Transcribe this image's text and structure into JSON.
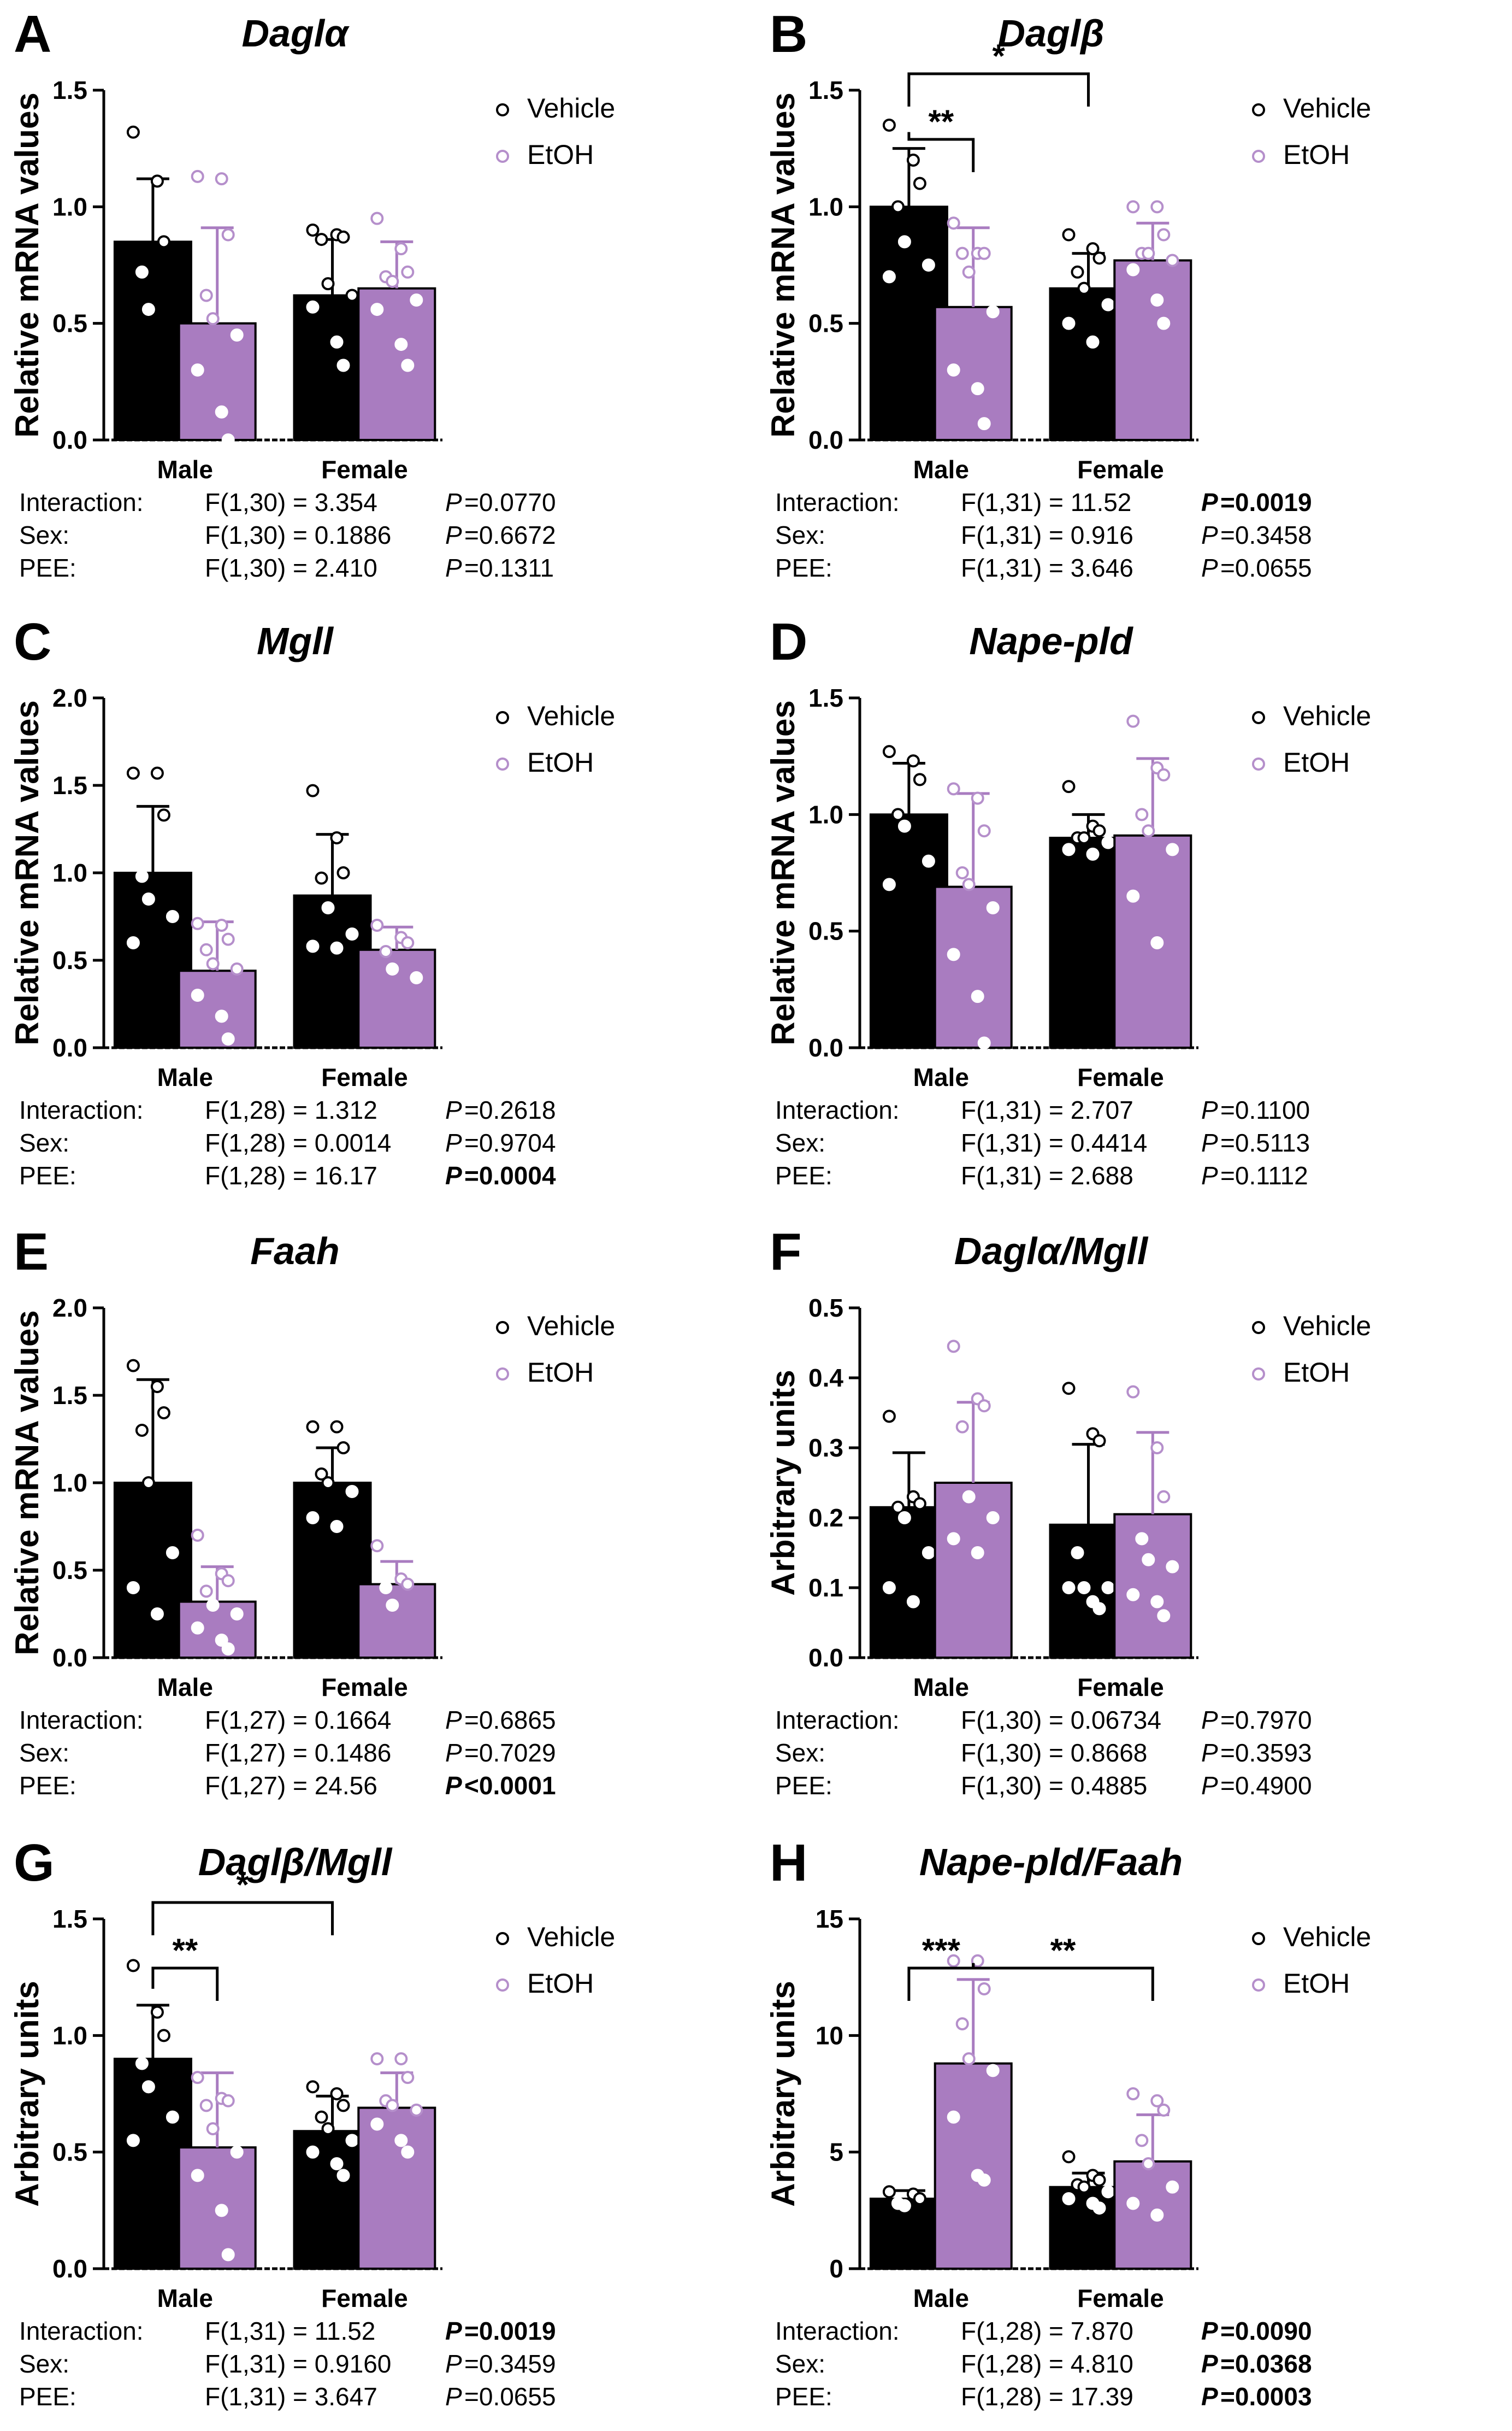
{
  "legend_labels": [
    "Vehicle",
    "EtOH"
  ],
  "colors": {
    "vehicle": "#000000",
    "etoh": "#a97cc0",
    "etoh_dot": "#b58fcb",
    "axis": "#000000"
  },
  "chart_data": [
    {
      "type": "bar",
      "letter": "A",
      "title": "Daglα",
      "ylabel": "Relative mRNA values",
      "ylim": [
        0,
        1.5
      ],
      "yticks": [
        "0.0",
        "0.5",
        "1.0",
        "1.5"
      ],
      "categories": [
        "Male",
        "Female"
      ],
      "series": [
        {
          "name": "Vehicle",
          "values": [
            0.85,
            0.62
          ],
          "sd": [
            0.27,
            0.24
          ],
          "points": [
            [
              1.32,
              1.11,
              0.85,
              0.72,
              0.56
            ],
            [
              0.9,
              0.88,
              0.87,
              0.86,
              0.67,
              0.62,
              0.57,
              0.42,
              0.32
            ]
          ]
        },
        {
          "name": "EtOH",
          "values": [
            0.5,
            0.65
          ],
          "sd": [
            0.41,
            0.2
          ],
          "points": [
            [
              1.13,
              1.12,
              0.88,
              0.62,
              0.52,
              0.45,
              0.3,
              0.12,
              0.0
            ],
            [
              0.95,
              0.82,
              0.72,
              0.7,
              0.68,
              0.6,
              0.56,
              0.41,
              0.32
            ]
          ]
        }
      ],
      "significance": [],
      "stats": [
        {
          "term": "Interaction:",
          "f": "F(1,30) = 3.354",
          "p_label": "P",
          "p_value": "=0.0770",
          "bold": false
        },
        {
          "term": "Sex:",
          "f": "F(1,30) = 0.1886",
          "p_label": "P",
          "p_value": "=0.6672",
          "bold": false
        },
        {
          "term": "PEE:",
          "f": "F(1,30) = 2.410",
          "p_label": "P",
          "p_value": "=0.1311",
          "bold": false
        }
      ]
    },
    {
      "type": "bar",
      "letter": "B",
      "title": "Daglβ",
      "ylabel": "Relative mRNA values",
      "ylim": [
        0,
        1.5
      ],
      "yticks": [
        "0.0",
        "0.5",
        "1.0",
        "1.5"
      ],
      "categories": [
        "Male",
        "Female"
      ],
      "series": [
        {
          "name": "Vehicle",
          "values": [
            1.0,
            0.65
          ],
          "sd": [
            0.25,
            0.15
          ],
          "points": [
            [
              1.35,
              1.2,
              1.1,
              1.0,
              0.85,
              0.75,
              0.7
            ],
            [
              0.88,
              0.82,
              0.78,
              0.72,
              0.65,
              0.58,
              0.5,
              0.42
            ]
          ]
        },
        {
          "name": "EtOH",
          "values": [
            0.57,
            0.77
          ],
          "sd": [
            0.34,
            0.16
          ],
          "points": [
            [
              0.93,
              0.8,
              0.8,
              0.8,
              0.72,
              0.55,
              0.3,
              0.22,
              0.07
            ],
            [
              1.0,
              1.0,
              0.88,
              0.8,
              0.8,
              0.77,
              0.73,
              0.6,
              0.5
            ]
          ]
        }
      ],
      "significance": [
        {
          "label": "**",
          "from": [
            0,
            0
          ],
          "to": [
            0,
            1
          ],
          "level": 1
        },
        {
          "label": "*",
          "from": [
            0,
            0
          ],
          "to": [
            1,
            0
          ],
          "level": 2
        }
      ],
      "stats": [
        {
          "term": "Interaction:",
          "f": "F(1,31) = 11.52",
          "p_label": "P",
          "p_value": "=0.0019",
          "bold": true
        },
        {
          "term": "Sex:",
          "f": "F(1,31) = 0.916",
          "p_label": "P",
          "p_value": "=0.3458",
          "bold": false
        },
        {
          "term": "PEE:",
          "f": "F(1,31) = 3.646",
          "p_label": "P",
          "p_value": "=0.0655",
          "bold": false
        }
      ]
    },
    {
      "type": "bar",
      "letter": "C",
      "title": "Mgll",
      "ylabel": "Relative mRNA values",
      "ylim": [
        0,
        2.0
      ],
      "yticks": [
        "0.0",
        "0.5",
        "1.0",
        "1.5",
        "2.0"
      ],
      "categories": [
        "Male",
        "Female"
      ],
      "series": [
        {
          "name": "Vehicle",
          "values": [
            1.0,
            0.87
          ],
          "sd": [
            0.38,
            0.35
          ],
          "points": [
            [
              1.57,
              1.57,
              1.33,
              0.98,
              0.85,
              0.75,
              0.6
            ],
            [
              1.47,
              1.2,
              1.0,
              0.97,
              0.8,
              0.65,
              0.58,
              0.57
            ]
          ]
        },
        {
          "name": "EtOH",
          "values": [
            0.44,
            0.56
          ],
          "sd": [
            0.28,
            0.13
          ],
          "points": [
            [
              0.71,
              0.7,
              0.62,
              0.56,
              0.48,
              0.45,
              0.3,
              0.18,
              0.05
            ],
            [
              0.7,
              0.63,
              0.6,
              0.55,
              0.45,
              0.4
            ]
          ]
        }
      ],
      "significance": [],
      "stats": [
        {
          "term": "Interaction:",
          "f": "F(1,28) = 1.312",
          "p_label": "P",
          "p_value": "=0.2618",
          "bold": false
        },
        {
          "term": "Sex:",
          "f": "F(1,28) = 0.0014",
          "p_label": "P",
          "p_value": "=0.9704",
          "bold": false
        },
        {
          "term": "PEE:",
          "f": "F(1,28) = 16.17",
          "p_label": "P",
          "p_value": "=0.0004",
          "bold": true
        }
      ]
    },
    {
      "type": "bar",
      "letter": "D",
      "title": "Nape-pld",
      "ylabel": "Relative mRNA values",
      "ylim": [
        0,
        1.5
      ],
      "yticks": [
        "0.0",
        "0.5",
        "1.0",
        "1.5"
      ],
      "categories": [
        "Male",
        "Female"
      ],
      "series": [
        {
          "name": "Vehicle",
          "values": [
            1.0,
            0.9
          ],
          "sd": [
            0.22,
            0.1
          ],
          "points": [
            [
              1.27,
              1.23,
              1.15,
              1.0,
              0.95,
              0.8,
              0.7
            ],
            [
              1.12,
              0.95,
              0.93,
              0.9,
              0.9,
              0.88,
              0.85,
              0.83
            ]
          ]
        },
        {
          "name": "EtOH",
          "values": [
            0.69,
            0.91
          ],
          "sd": [
            0.4,
            0.33
          ],
          "points": [
            [
              1.11,
              1.07,
              0.93,
              0.75,
              0.7,
              0.6,
              0.4,
              0.22,
              0.02
            ],
            [
              1.4,
              1.2,
              1.17,
              1.0,
              0.93,
              0.85,
              0.65,
              0.45
            ]
          ]
        }
      ],
      "significance": [],
      "stats": [
        {
          "term": "Interaction:",
          "f": "F(1,31) = 2.707",
          "p_label": "P",
          "p_value": "=0.1100",
          "bold": false
        },
        {
          "term": "Sex:",
          "f": "F(1,31) = 0.4414",
          "p_label": "P",
          "p_value": "=0.5113",
          "bold": false
        },
        {
          "term": "PEE:",
          "f": "F(1,31) = 2.688",
          "p_label": "P",
          "p_value": "=0.1112",
          "bold": false
        }
      ]
    },
    {
      "type": "bar",
      "letter": "E",
      "title": "Faah",
      "ylabel": "Relative mRNA values",
      "ylim": [
        0,
        2.0
      ],
      "yticks": [
        "0.0",
        "0.5",
        "1.0",
        "1.5",
        "2.0"
      ],
      "categories": [
        "Male",
        "Female"
      ],
      "series": [
        {
          "name": "Vehicle",
          "values": [
            1.0,
            1.0
          ],
          "sd": [
            0.59,
            0.2
          ],
          "points": [
            [
              1.67,
              1.55,
              1.4,
              1.3,
              1.0,
              0.6,
              0.4,
              0.25
            ],
            [
              1.32,
              1.32,
              1.2,
              1.05,
              1.0,
              0.95,
              0.8,
              0.75
            ]
          ]
        },
        {
          "name": "EtOH",
          "values": [
            0.32,
            0.42
          ],
          "sd": [
            0.2,
            0.13
          ],
          "points": [
            [
              0.7,
              0.48,
              0.44,
              0.38,
              0.3,
              0.25,
              0.17,
              0.1,
              0.05
            ],
            [
              0.64,
              0.45,
              0.42,
              0.4,
              0.3
            ]
          ]
        }
      ],
      "significance": [],
      "stats": [
        {
          "term": "Interaction:",
          "f": "F(1,27) = 0.1664",
          "p_label": "P",
          "p_value": "=0.6865",
          "bold": false
        },
        {
          "term": "Sex:",
          "f": "F(1,27) = 0.1486",
          "p_label": "P",
          "p_value": "=0.7029",
          "bold": false
        },
        {
          "term": "PEE:",
          "f": "F(1,27) = 24.56",
          "p_label": "P",
          "p_value": "<0.0001",
          "bold": true
        }
      ]
    },
    {
      "type": "bar",
      "letter": "F",
      "title": "Daglα/Mgll",
      "ylabel": "Arbitrary units",
      "ylim": [
        0,
        0.5
      ],
      "yticks": [
        "0.0",
        "0.1",
        "0.2",
        "0.3",
        "0.4",
        "0.5"
      ],
      "categories": [
        "Male",
        "Female"
      ],
      "series": [
        {
          "name": "Vehicle",
          "values": [
            0.215,
            0.19
          ],
          "sd": [
            0.078,
            0.115
          ],
          "points": [
            [
              0.345,
              0.23,
              0.22,
              0.215,
              0.2,
              0.15,
              0.1,
              0.08
            ],
            [
              0.385,
              0.32,
              0.31,
              0.15,
              0.1,
              0.1,
              0.1,
              0.08,
              0.07
            ]
          ]
        },
        {
          "name": "EtOH",
          "values": [
            0.25,
            0.205
          ],
          "sd": [
            0.115,
            0.117
          ],
          "points": [
            [
              0.445,
              0.37,
              0.36,
              0.33,
              0.23,
              0.2,
              0.17,
              0.15
            ],
            [
              0.38,
              0.3,
              0.23,
              0.17,
              0.14,
              0.13,
              0.09,
              0.08,
              0.06
            ]
          ]
        }
      ],
      "significance": [],
      "stats": [
        {
          "term": "Interaction:",
          "f": "F(1,30) = 0.06734",
          "p_label": "P",
          "p_value": "=0.7970",
          "bold": false
        },
        {
          "term": "Sex:",
          "f": "F(1,30) = 0.8668",
          "p_label": "P",
          "p_value": "=0.3593",
          "bold": false
        },
        {
          "term": "PEE:",
          "f": "F(1,30) = 0.4885",
          "p_label": "P",
          "p_value": "=0.4900",
          "bold": false
        }
      ]
    },
    {
      "type": "bar",
      "letter": "G",
      "title": "Daglβ/Mgll",
      "ylabel": "Arbitrary units",
      "ylim": [
        0,
        1.5
      ],
      "yticks": [
        "0.0",
        "0.5",
        "1.0",
        "1.5"
      ],
      "categories": [
        "Male",
        "Female"
      ],
      "series": [
        {
          "name": "Vehicle",
          "values": [
            0.9,
            0.59
          ],
          "sd": [
            0.23,
            0.15
          ],
          "points": [
            [
              1.3,
              1.1,
              1.0,
              0.88,
              0.78,
              0.65,
              0.55
            ],
            [
              0.78,
              0.75,
              0.7,
              0.65,
              0.6,
              0.55,
              0.5,
              0.45,
              0.4
            ]
          ]
        },
        {
          "name": "EtOH",
          "values": [
            0.52,
            0.69
          ],
          "sd": [
            0.32,
            0.15
          ],
          "points": [
            [
              0.82,
              0.73,
              0.72,
              0.7,
              0.6,
              0.5,
              0.4,
              0.25,
              0.06
            ],
            [
              0.9,
              0.9,
              0.82,
              0.72,
              0.7,
              0.68,
              0.62,
              0.55,
              0.5
            ]
          ]
        }
      ],
      "significance": [
        {
          "label": "**",
          "from": [
            0,
            0
          ],
          "to": [
            0,
            1
          ],
          "level": 1
        },
        {
          "label": "*",
          "from": [
            0,
            0
          ],
          "to": [
            1,
            0
          ],
          "level": 2
        }
      ],
      "stats": [
        {
          "term": "Interaction:",
          "f": "F(1,31) = 11.52",
          "p_label": "P",
          "p_value": "=0.0019",
          "bold": true
        },
        {
          "term": "Sex:",
          "f": "F(1,31) = 0.9160",
          "p_label": "P",
          "p_value": "=0.3459",
          "bold": false
        },
        {
          "term": "PEE:",
          "f": "F(1,31) = 3.647",
          "p_label": "P",
          "p_value": "=0.0655",
          "bold": false
        }
      ]
    },
    {
      "type": "bar",
      "letter": "H",
      "title": "Nape-pld/Faah",
      "ylabel": "Arbitrary units",
      "ylim": [
        0,
        15
      ],
      "yticks": [
        "0",
        "5",
        "10",
        "15"
      ],
      "categories": [
        "Male",
        "Female"
      ],
      "series": [
        {
          "name": "Vehicle",
          "values": [
            3.0,
            3.5
          ],
          "sd": [
            0.35,
            0.6
          ],
          "points": [
            [
              3.3,
              3.2,
              3.0,
              2.8,
              2.7
            ],
            [
              4.8,
              4.0,
              3.8,
              3.6,
              3.5,
              3.3,
              3.0,
              2.8,
              2.6
            ]
          ]
        },
        {
          "name": "EtOH",
          "values": [
            8.8,
            4.6
          ],
          "sd": [
            3.6,
            2.0
          ],
          "points": [
            [
              13.2,
              13.2,
              12.0,
              10.5,
              9.0,
              8.5,
              6.5,
              4.0,
              3.8
            ],
            [
              7.5,
              7.2,
              6.8,
              5.5,
              4.5,
              3.5,
              2.8,
              2.3
            ]
          ]
        }
      ],
      "significance": [
        {
          "label": "***",
          "from": [
            0,
            0
          ],
          "to": [
            0,
            1
          ],
          "level": 1
        },
        {
          "label": "**",
          "from": [
            0,
            1
          ],
          "to": [
            1,
            1
          ],
          "level": 1
        }
      ],
      "stats": [
        {
          "term": "Interaction:",
          "f": "F(1,28) = 7.870",
          "p_label": "P",
          "p_value": "=0.0090",
          "bold": true
        },
        {
          "term": "Sex:",
          "f": "F(1,28) = 4.810",
          "p_label": "P",
          "p_value": "=0.0368",
          "bold": true
        },
        {
          "term": "PEE:",
          "f": "F(1,28) = 17.39",
          "p_label": "P",
          "p_value": "=0.0003",
          "bold": true
        }
      ]
    }
  ]
}
